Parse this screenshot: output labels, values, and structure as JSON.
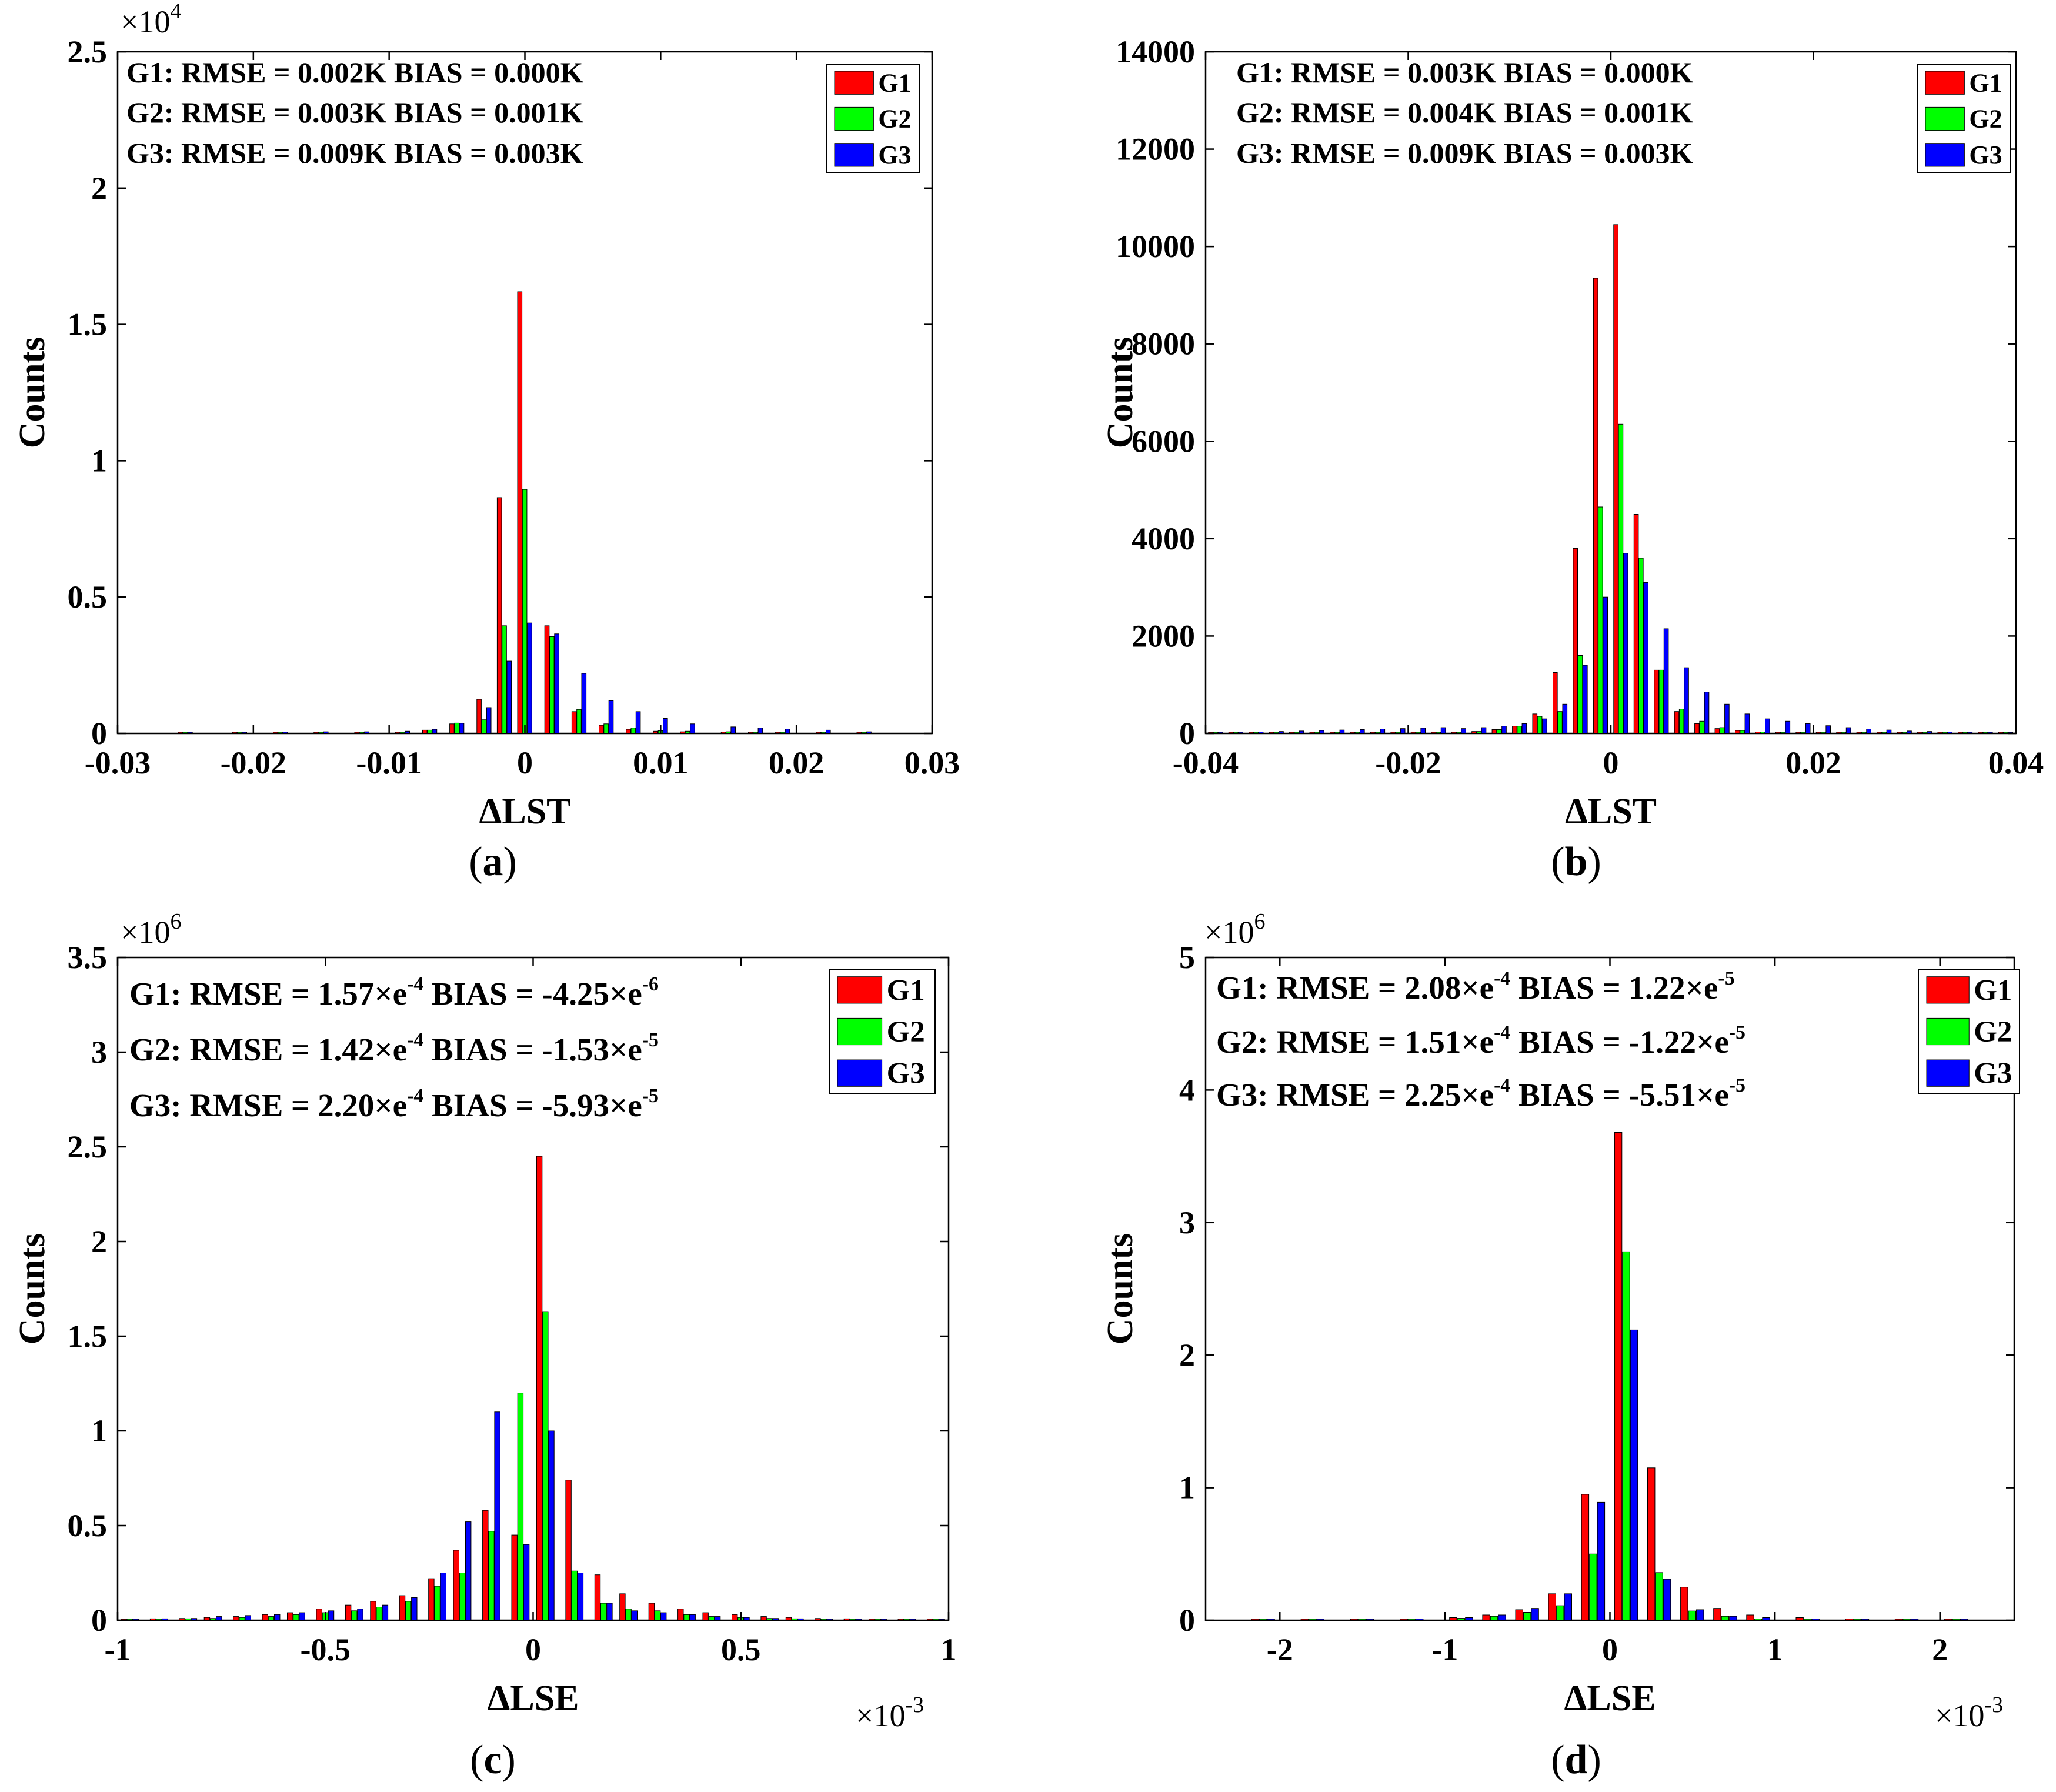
{
  "figure": {
    "captions": [
      "(a)",
      "(b)",
      "(c)",
      "(d)"
    ]
  },
  "colors": {
    "G1": "#ff0000",
    "G2": "#00ff00",
    "G3": "#0000ff",
    "axis": "#000000",
    "background": "#ffffff"
  },
  "chart_data": [
    {
      "id": "a",
      "type": "bar",
      "caption_letter": "a",
      "xlabel": "ΔLST",
      "ylabel": "Counts",
      "xlim": [
        -0.03,
        0.03
      ],
      "ylim": [
        0,
        25000
      ],
      "x_ticks": [
        -0.03,
        -0.02,
        -0.01,
        0,
        0.01,
        0.02,
        0.03
      ],
      "x_tick_labels": [
        "-0.03",
        "-0.02",
        "-0.01",
        "0",
        "0.01",
        "0.02",
        "0.03"
      ],
      "y_ticks": [
        0,
        5000,
        10000,
        15000,
        20000,
        25000
      ],
      "y_tick_labels": [
        "0",
        "0.5",
        "1",
        "1.5",
        "2",
        "2.5"
      ],
      "y_exponent": {
        "base": "×10",
        "power": "4"
      },
      "x_exponent": null,
      "legend": [
        "G1",
        "G2",
        "G3"
      ],
      "stats": [
        {
          "label": "G1: RMSE = 0.002K BIAS = 0.000K"
        },
        {
          "label": "G2: RMSE = 0.003K BIAS = 0.001K"
        },
        {
          "label": "G3: RMSE = 0.009K BIAS = 0.003K"
        }
      ],
      "x": [
        -0.025,
        -0.021,
        -0.018,
        -0.015,
        -0.012,
        -0.009,
        -0.007,
        -0.005,
        -0.003,
        -0.0015,
        0,
        0.002,
        0.004,
        0.006,
        0.008,
        0.01,
        0.012,
        0.015,
        0.017,
        0.019,
        0.022,
        0.025
      ],
      "series": [
        {
          "name": "G1",
          "values": [
            0,
            0,
            0,
            0,
            20,
            40,
            120,
            350,
            1250,
            8650,
            16200,
            3950,
            800,
            300,
            150,
            80,
            60,
            50,
            30,
            20,
            10,
            5
          ]
        },
        {
          "name": "G2",
          "values": [
            0,
            0,
            0,
            0,
            20,
            40,
            120,
            380,
            500,
            3950,
            8950,
            3550,
            880,
            350,
            200,
            100,
            80,
            60,
            30,
            20,
            10,
            5
          ]
        },
        {
          "name": "G3",
          "values": [
            30,
            40,
            50,
            60,
            60,
            80,
            150,
            370,
            950,
            2650,
            4050,
            3650,
            2200,
            1200,
            800,
            550,
            350,
            240,
            200,
            160,
            120,
            60
          ]
        }
      ]
    },
    {
      "id": "b",
      "type": "bar",
      "caption_letter": "b",
      "xlabel": "ΔLST",
      "ylabel": "Counts",
      "xlim": [
        -0.04,
        0.04
      ],
      "ylim": [
        0,
        14000
      ],
      "x_ticks": [
        -0.04,
        -0.02,
        0,
        0.02,
        0.04
      ],
      "x_tick_labels": [
        "-0.04",
        "-0.02",
        "0",
        "0.02",
        "0.04"
      ],
      "y_ticks": [
        0,
        2000,
        4000,
        6000,
        8000,
        10000,
        12000,
        14000
      ],
      "y_tick_labels": [
        "0",
        "2000",
        "4000",
        "6000",
        "8000",
        "10000",
        "12000",
        "14000"
      ],
      "y_exponent": null,
      "x_exponent": null,
      "legend": [
        "G1",
        "G2",
        "G3"
      ],
      "stats": [
        {
          "label": "G1: RMSE = 0.003K BIAS = 0.000K"
        },
        {
          "label": "G2: RMSE = 0.004K BIAS = 0.001K"
        },
        {
          "label": "G3: RMSE = 0.009K BIAS = 0.003K"
        }
      ],
      "x": [
        -0.039,
        -0.037,
        -0.035,
        -0.033,
        -0.031,
        -0.029,
        -0.027,
        -0.025,
        -0.023,
        -0.021,
        -0.019,
        -0.017,
        -0.015,
        -0.013,
        -0.011,
        -0.009,
        -0.007,
        -0.005,
        -0.003,
        -0.001,
        0.001,
        0.003,
        0.005,
        0.007,
        0.009,
        0.011,
        0.013,
        0.015,
        0.017,
        0.019,
        0.021,
        0.023,
        0.025,
        0.027,
        0.029,
        0.031,
        0.033,
        0.035,
        0.037,
        0.039
      ],
      "series": [
        {
          "name": "G1",
          "values": [
            0,
            0,
            0,
            0,
            0,
            0,
            0,
            0,
            0,
            0,
            0,
            0,
            20,
            40,
            80,
            150,
            400,
            1250,
            3800,
            9350,
            10450,
            4500,
            1300,
            450,
            200,
            100,
            60,
            30,
            20,
            10,
            5,
            0,
            0,
            0,
            0,
            0,
            0,
            0,
            0,
            0
          ]
        },
        {
          "name": "G2",
          "values": [
            0,
            0,
            0,
            0,
            0,
            0,
            0,
            0,
            0,
            0,
            0,
            0,
            20,
            40,
            80,
            150,
            350,
            450,
            1600,
            4650,
            6350,
            3600,
            1300,
            500,
            250,
            120,
            60,
            30,
            20,
            10,
            5,
            0,
            0,
            0,
            0,
            0,
            0,
            0,
            0,
            0
          ]
        },
        {
          "name": "G3",
          "values": [
            10,
            20,
            30,
            40,
            50,
            60,
            70,
            80,
            90,
            100,
            110,
            120,
            100,
            120,
            150,
            200,
            300,
            600,
            1400,
            2800,
            3700,
            3100,
            2150,
            1350,
            850,
            600,
            400,
            300,
            250,
            200,
            160,
            120,
            90,
            70,
            50,
            40,
            30,
            20,
            10,
            10
          ]
        }
      ]
    },
    {
      "id": "c",
      "type": "bar",
      "caption_letter": "c",
      "xlabel": "ΔLSE",
      "ylabel": "Counts",
      "xlim": [
        -1,
        1
      ],
      "ylim": [
        0,
        3.5
      ],
      "x_ticks": [
        -1,
        -0.5,
        0,
        0.5,
        1
      ],
      "x_tick_labels": [
        "-1",
        "-0.5",
        "0",
        "0.5",
        "1"
      ],
      "y_ticks": [
        0,
        0.5,
        1,
        1.5,
        2,
        2.5,
        3,
        3.5
      ],
      "y_tick_labels": [
        "0",
        "0.5",
        "1",
        "1.5",
        "2",
        "2.5",
        "3",
        "3.5"
      ],
      "y_exponent": {
        "base": "×10",
        "power": "6"
      },
      "x_exponent": {
        "base": "×10",
        "power": "-3"
      },
      "legend": [
        "G1",
        "G2",
        "G3"
      ],
      "stats": [
        {
          "label": "G1: RMSE = 1.57×e",
          "rmse_exp": "-4",
          "bias_label": " BIAS = -4.25×e",
          "bias_exp": "-6"
        },
        {
          "label": "G2: RMSE = 1.42×e",
          "rmse_exp": "-4",
          "bias_label": " BIAS = -1.53×e",
          "bias_exp": "-5"
        },
        {
          "label": "G3: RMSE = 2.20×e",
          "rmse_exp": "-4",
          "bias_label": " BIAS = -5.93×e",
          "bias_exp": "-5"
        }
      ],
      "x": [
        -0.97,
        -0.9,
        -0.83,
        -0.77,
        -0.7,
        -0.63,
        -0.57,
        -0.5,
        -0.43,
        -0.37,
        -0.3,
        -0.23,
        -0.17,
        -0.1,
        -0.03,
        0.03,
        0.1,
        0.17,
        0.23,
        0.3,
        0.37,
        0.43,
        0.5,
        0.57,
        0.63,
        0.7,
        0.77,
        0.83,
        0.9,
        0.97
      ],
      "series": [
        {
          "name": "G1",
          "values": [
            0.005,
            0.008,
            0.01,
            0.015,
            0.02,
            0.03,
            0.04,
            0.06,
            0.08,
            0.1,
            0.13,
            0.22,
            0.37,
            0.58,
            0.45,
            2.45,
            0.74,
            0.24,
            0.14,
            0.09,
            0.06,
            0.04,
            0.03,
            0.02,
            0.015,
            0.01,
            0.008,
            0.005,
            0.004,
            0.003
          ]
        },
        {
          "name": "G2",
          "values": [
            0.004,
            0.006,
            0.008,
            0.01,
            0.015,
            0.02,
            0.03,
            0.04,
            0.05,
            0.07,
            0.1,
            0.18,
            0.25,
            0.47,
            1.2,
            1.63,
            0.26,
            0.09,
            0.06,
            0.05,
            0.03,
            0.02,
            0.015,
            0.01,
            0.008,
            0.006,
            0.005,
            0.004,
            0.003,
            0.002
          ]
        },
        {
          "name": "G3",
          "values": [
            0.006,
            0.008,
            0.01,
            0.02,
            0.025,
            0.03,
            0.04,
            0.05,
            0.06,
            0.08,
            0.12,
            0.25,
            0.52,
            1.1,
            0.4,
            1.0,
            0.25,
            0.09,
            0.05,
            0.04,
            0.03,
            0.02,
            0.015,
            0.01,
            0.008,
            0.006,
            0.005,
            0.004,
            0.003,
            0.002
          ]
        }
      ]
    },
    {
      "id": "d",
      "type": "bar",
      "caption_letter": "d",
      "xlabel": "ΔLSE",
      "ylabel": "Counts",
      "xlim": [
        -2.45,
        2.45
      ],
      "ylim": [
        0,
        5
      ],
      "x_ticks": [
        -2,
        -1,
        0,
        1,
        2
      ],
      "x_tick_labels": [
        "-2",
        "-1",
        "0",
        "1",
        "2"
      ],
      "y_ticks": [
        0,
        1,
        2,
        3,
        4,
        5
      ],
      "y_tick_labels": [
        "0",
        "1",
        "2",
        "3",
        "4",
        "5"
      ],
      "y_exponent": {
        "base": "×10",
        "power": "6"
      },
      "x_exponent": {
        "base": "×10",
        "power": "-3"
      },
      "legend": [
        "G1",
        "G2",
        "G3"
      ],
      "stats": [
        {
          "label": "G1: RMSE = 2.08×e",
          "rmse_exp": "-4",
          "bias_label": " BIAS = 1.22×e",
          "bias_exp": "-5"
        },
        {
          "label": "G2: RMSE = 1.51×e",
          "rmse_exp": "-4",
          "bias_label": " BIAS = -1.22×e",
          "bias_exp": "-5"
        },
        {
          "label": "G3: RMSE = 2.25×e",
          "rmse_exp": "-4",
          "bias_label": " BIAS = -5.51×e",
          "bias_exp": "-5"
        }
      ],
      "x": [
        -2.1,
        -1.8,
        -1.5,
        -1.2,
        -0.9,
        -0.7,
        -0.5,
        -0.3,
        -0.1,
        0.1,
        0.3,
        0.5,
        0.7,
        0.9,
        1.2,
        1.5,
        1.8,
        2.1
      ],
      "series": [
        {
          "name": "G1",
          "values": [
            0.003,
            0.004,
            0.005,
            0.008,
            0.02,
            0.04,
            0.08,
            0.2,
            0.95,
            3.68,
            1.15,
            0.25,
            0.09,
            0.04,
            0.02,
            0.01,
            0.005,
            0.003
          ]
        },
        {
          "name": "G2",
          "values": [
            0.002,
            0.003,
            0.004,
            0.006,
            0.015,
            0.03,
            0.06,
            0.11,
            0.5,
            2.78,
            0.36,
            0.07,
            0.03,
            0.01,
            0.005,
            0.004,
            0.003,
            0.002
          ]
        },
        {
          "name": "G3",
          "values": [
            0.003,
            0.004,
            0.005,
            0.01,
            0.02,
            0.04,
            0.09,
            0.2,
            0.89,
            2.19,
            0.31,
            0.08,
            0.03,
            0.02,
            0.01,
            0.006,
            0.004,
            0.003
          ]
        }
      ]
    }
  ]
}
